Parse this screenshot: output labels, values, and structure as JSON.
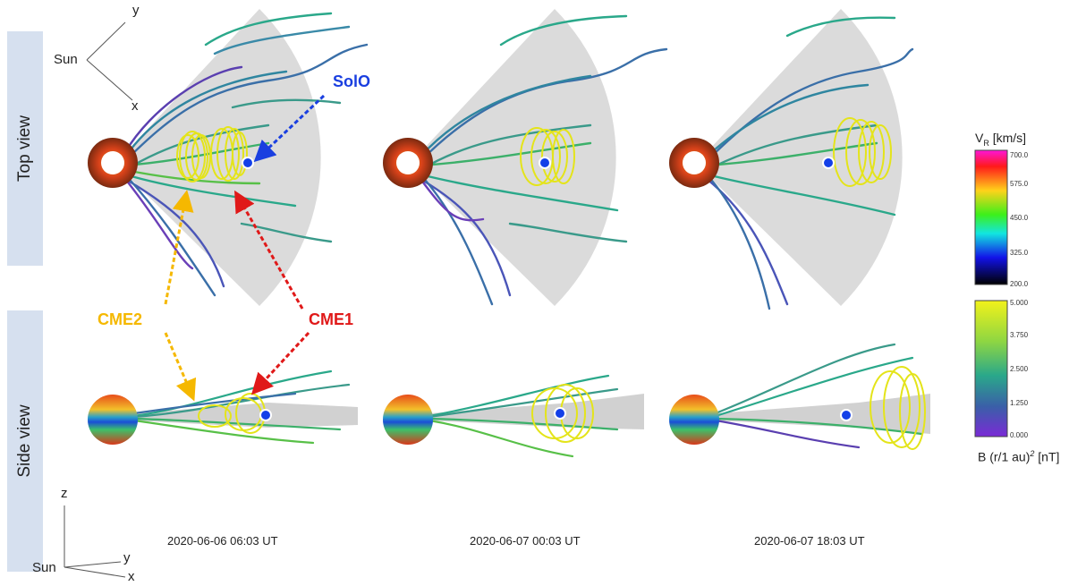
{
  "row_labels": {
    "top": "Top view",
    "side": "Side view"
  },
  "axes_top": {
    "sun": "Sun",
    "y": "y",
    "x": "x"
  },
  "axes_bottom": {
    "sun": "Sun",
    "z": "z",
    "y": "y",
    "x": "x"
  },
  "timestamps": [
    "2020-06-06 06:03 UT",
    "2020-06-07 00:03 UT",
    "2020-06-07 18:03 UT"
  ],
  "callouts": {
    "solo": "SolO",
    "cme1": "CME1",
    "cme2": "CME2"
  },
  "colors": {
    "solo": "#1a3fe0",
    "cme1": "#e01919",
    "cme2": "#f5b800",
    "row_bg": "#d6e0ef",
    "cone": "#cfcfcf",
    "spacecraft": "#1440e8"
  },
  "colorbar_vr": {
    "title_main": "V",
    "title_sub": "R",
    "title_unit": " [km/s]",
    "ticks": [
      "700.0",
      "575.0",
      "450.0",
      "325.0",
      "200.0"
    ]
  },
  "colorbar_b": {
    "title": "B (r/1 au)",
    "title_sup": "2",
    "title_unit": " [nT]",
    "ticks": [
      "5.000",
      "3.750",
      "2.500",
      "1.250",
      "0.000"
    ]
  }
}
